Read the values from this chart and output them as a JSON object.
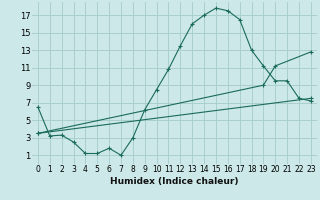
{
  "xlabel": "Humidex (Indice chaleur)",
  "background_color": "#cce8e8",
  "grid_color": "#aacfcf",
  "line_color": "#1a6b5a",
  "x_ticks": [
    0,
    1,
    2,
    3,
    4,
    5,
    6,
    7,
    8,
    9,
    10,
    11,
    12,
    13,
    14,
    15,
    16,
    17,
    18,
    19,
    20,
    21,
    22,
    23
  ],
  "y_ticks": [
    1,
    3,
    5,
    7,
    9,
    11,
    13,
    15,
    17
  ],
  "ylim": [
    0.0,
    18.5
  ],
  "xlim": [
    -0.5,
    23.5
  ],
  "curve1_x": [
    0,
    1,
    2,
    3,
    4,
    5,
    6,
    7,
    8,
    9,
    10,
    11,
    12,
    13,
    14,
    15,
    16,
    17,
    18,
    19,
    20,
    21,
    22,
    23
  ],
  "curve1_y": [
    6.5,
    3.2,
    3.3,
    2.5,
    1.2,
    1.2,
    1.8,
    1.0,
    3.0,
    6.2,
    8.5,
    10.8,
    13.5,
    16.0,
    17.0,
    17.8,
    17.5,
    16.5,
    13.0,
    11.2,
    9.5,
    9.5,
    7.5,
    7.2
  ],
  "curve2_x": [
    0,
    19,
    20,
    23
  ],
  "curve2_y": [
    3.5,
    9.0,
    11.2,
    12.8
  ],
  "curve3_x": [
    0,
    23
  ],
  "curve3_y": [
    3.5,
    7.5
  ]
}
